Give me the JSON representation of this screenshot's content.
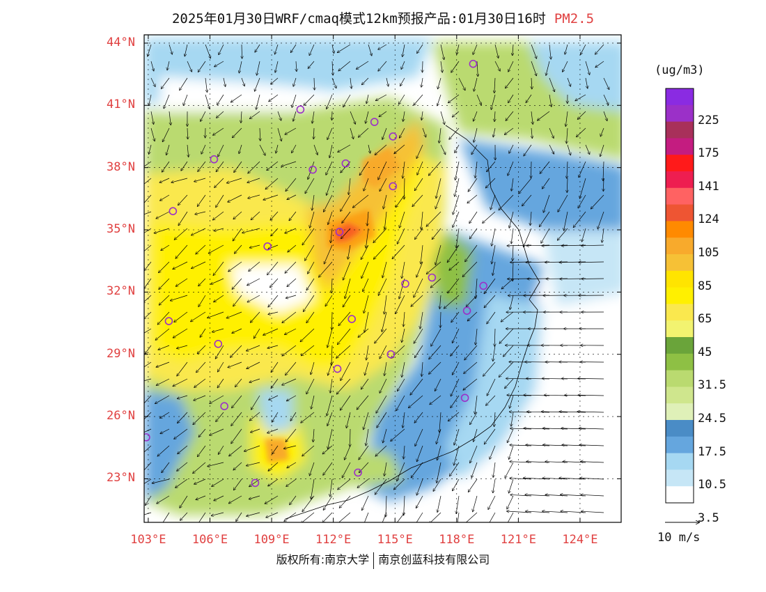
{
  "title": {
    "main": "2025年01月30日WRF/cmaq模式12km预报产品:01月30日16时",
    "pollutant": "PM2.5"
  },
  "axes": {
    "lat_labels": [
      "44°N",
      "41°N",
      "38°N",
      "35°N",
      "32°N",
      "29°N",
      "26°N",
      "23°N"
    ],
    "lat_values": [
      44,
      41,
      38,
      35,
      32,
      29,
      26,
      23
    ],
    "lon_labels": [
      "103°E",
      "106°E",
      "109°E",
      "112°E",
      "115°E",
      "118°E",
      "121°E",
      "124°E"
    ],
    "lon_values": [
      103,
      106,
      109,
      112,
      115,
      118,
      121,
      124
    ],
    "lon_range": [
      102.8,
      126.0
    ],
    "lat_range": [
      20.9,
      44.4
    ]
  },
  "colorbar": {
    "unit": "(ug/m3)",
    "labels": [
      "225",
      "175",
      "141",
      "124",
      "105",
      "85",
      "65",
      "45",
      "31.5",
      "24.5",
      "17.5",
      "10.5",
      "3.5"
    ],
    "colors": [
      "#8a2be2",
      "#9b30c8",
      "#a8305a",
      "#c41c80",
      "#ff1a1a",
      "#ee1e50",
      "#ff6262",
      "#ee5533",
      "#ff8a00",
      "#f8aa2c",
      "#f6c136",
      "#ffe400",
      "#fff000",
      "#fae84e",
      "#f2f370",
      "#6aa43a",
      "#8ec044",
      "#bada70",
      "#cfe68d",
      "#dff0b8",
      "#4a8cc6",
      "#65a6de",
      "#a6d8f2",
      "#c6e6f6",
      "#ffffff"
    ]
  },
  "reference_vector": {
    "label": "10 m/s",
    "speed": 10
  },
  "credits": {
    "left": "版权所有:南京大学",
    "right": "南京创蓝科技有限公司"
  },
  "map_data": {
    "cities": [
      {
        "lon": 118.8,
        "lat": 43.0
      },
      {
        "lon": 110.4,
        "lat": 40.8
      },
      {
        "lon": 114.0,
        "lat": 40.2
      },
      {
        "lon": 114.9,
        "lat": 39.5
      },
      {
        "lon": 106.2,
        "lat": 38.4
      },
      {
        "lon": 111.0,
        "lat": 37.9
      },
      {
        "lon": 112.6,
        "lat": 38.2
      },
      {
        "lon": 114.9,
        "lat": 37.1
      },
      {
        "lon": 104.2,
        "lat": 35.9
      },
      {
        "lon": 112.3,
        "lat": 34.9
      },
      {
        "lon": 108.8,
        "lat": 34.2
      },
      {
        "lon": 115.5,
        "lat": 32.4
      },
      {
        "lon": 116.8,
        "lat": 32.7
      },
      {
        "lon": 119.3,
        "lat": 32.3
      },
      {
        "lon": 118.5,
        "lat": 31.1
      },
      {
        "lon": 104.0,
        "lat": 30.6
      },
      {
        "lon": 112.9,
        "lat": 30.7
      },
      {
        "lon": 106.4,
        "lat": 29.5
      },
      {
        "lon": 114.8,
        "lat": 29.0
      },
      {
        "lon": 112.2,
        "lat": 28.3
      },
      {
        "lon": 106.7,
        "lat": 26.5
      },
      {
        "lon": 118.4,
        "lat": 26.9
      },
      {
        "lon": 102.9,
        "lat": 25.0
      },
      {
        "lon": 108.2,
        "lat": 22.8
      },
      {
        "lon": 113.2,
        "lat": 23.3
      }
    ],
    "hotspots": [
      {
        "lon": 111.6,
        "lat": 34.8,
        "level": "124"
      },
      {
        "lon": 112.2,
        "lat": 37.6,
        "level": "85"
      },
      {
        "lon": 108.3,
        "lat": 24.2,
        "level": "85"
      }
    ]
  }
}
